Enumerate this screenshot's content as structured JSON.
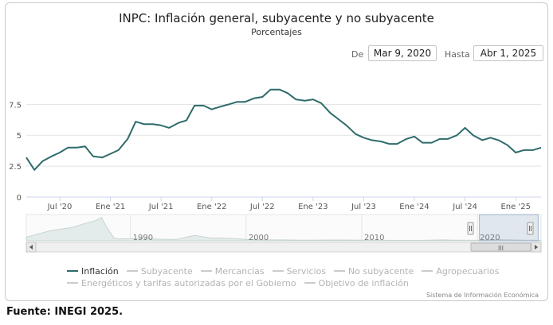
{
  "chart_data": {
    "type": "line",
    "title": "INPC: Inflación general, subyacente y no subyacente",
    "subtitle": "Porcentajes",
    "range_selector": {
      "from_label": "De",
      "from_value": "Mar 9, 2020",
      "to_label": "Hasta",
      "to_value": "Abr 1, 2025"
    },
    "yticks": [
      "0",
      "2.5",
      "5",
      "7.5"
    ],
    "ylim": [
      0,
      10.8
    ],
    "xticks": [
      {
        "label": "Jul '20",
        "t": 2020.5
      },
      {
        "label": "Ene '21",
        "t": 2021.0
      },
      {
        "label": "Jul '21",
        "t": 2021.5
      },
      {
        "label": "Ene '22",
        "t": 2022.0
      },
      {
        "label": "Jul '22",
        "t": 2022.5
      },
      {
        "label": "Ene '23",
        "t": 2023.0
      },
      {
        "label": "Jul '23",
        "t": 2023.5
      },
      {
        "label": "Ene '24",
        "t": 2024.0
      },
      {
        "label": "Jul '24",
        "t": 2024.5
      },
      {
        "label": "Ene '25",
        "t": 2025.0
      }
    ],
    "xlim": [
      2020.17,
      2025.25
    ],
    "series": [
      {
        "name": "Inflación",
        "color": "#2f6b6b",
        "points": [
          [
            2020.17,
            3.2
          ],
          [
            2020.25,
            2.2
          ],
          [
            2020.33,
            2.9
          ],
          [
            2020.42,
            3.3
          ],
          [
            2020.5,
            3.6
          ],
          [
            2020.58,
            4.0
          ],
          [
            2020.67,
            4.0
          ],
          [
            2020.75,
            4.1
          ],
          [
            2020.83,
            3.3
          ],
          [
            2020.92,
            3.2
          ],
          [
            2021.0,
            3.5
          ],
          [
            2021.08,
            3.8
          ],
          [
            2021.17,
            4.7
          ],
          [
            2021.25,
            6.1
          ],
          [
            2021.33,
            5.9
          ],
          [
            2021.42,
            5.9
          ],
          [
            2021.5,
            5.8
          ],
          [
            2021.58,
            5.6
          ],
          [
            2021.67,
            6.0
          ],
          [
            2021.75,
            6.2
          ],
          [
            2021.83,
            7.4
          ],
          [
            2021.92,
            7.4
          ],
          [
            2022.0,
            7.1
          ],
          [
            2022.08,
            7.3
          ],
          [
            2022.17,
            7.5
          ],
          [
            2022.25,
            7.7
          ],
          [
            2022.33,
            7.7
          ],
          [
            2022.42,
            8.0
          ],
          [
            2022.5,
            8.1
          ],
          [
            2022.58,
            8.7
          ],
          [
            2022.67,
            8.7
          ],
          [
            2022.75,
            8.4
          ],
          [
            2022.83,
            7.9
          ],
          [
            2022.92,
            7.8
          ],
          [
            2023.0,
            7.9
          ],
          [
            2023.08,
            7.6
          ],
          [
            2023.17,
            6.8
          ],
          [
            2023.25,
            6.3
          ],
          [
            2023.33,
            5.8
          ],
          [
            2023.42,
            5.1
          ],
          [
            2023.5,
            4.8
          ],
          [
            2023.58,
            4.6
          ],
          [
            2023.67,
            4.5
          ],
          [
            2023.75,
            4.3
          ],
          [
            2023.83,
            4.3
          ],
          [
            2023.92,
            4.7
          ],
          [
            2024.0,
            4.9
          ],
          [
            2024.08,
            4.4
          ],
          [
            2024.17,
            4.4
          ],
          [
            2024.25,
            4.7
          ],
          [
            2024.33,
            4.7
          ],
          [
            2024.42,
            5.0
          ],
          [
            2024.5,
            5.6
          ],
          [
            2024.58,
            5.0
          ],
          [
            2024.67,
            4.6
          ],
          [
            2024.75,
            4.8
          ],
          [
            2024.83,
            4.6
          ],
          [
            2024.92,
            4.2
          ],
          [
            2025.0,
            3.6
          ],
          [
            2025.08,
            3.8
          ],
          [
            2025.17,
            3.8
          ],
          [
            2025.25,
            4.0
          ]
        ]
      }
    ],
    "navigator": {
      "decade_labels": [
        "1990",
        "2000",
        "2010",
        "2020"
      ],
      "years_range": [
        1981,
        2025.5
      ],
      "profile": [
        [
          1981,
          8
        ],
        [
          1982,
          15
        ],
        [
          1983,
          22
        ],
        [
          1984,
          26
        ],
        [
          1985,
          30
        ],
        [
          1986,
          38
        ],
        [
          1987,
          45
        ],
        [
          1987.5,
          52
        ],
        [
          1988,
          28
        ],
        [
          1988.6,
          6
        ],
        [
          1989,
          4
        ],
        [
          1990,
          5
        ],
        [
          1991,
          5
        ],
        [
          1992,
          4
        ],
        [
          1993,
          3
        ],
        [
          1994,
          3
        ],
        [
          1995,
          9
        ],
        [
          1995.6,
          12
        ],
        [
          1996,
          10
        ],
        [
          1997,
          6
        ],
        [
          1998,
          6
        ],
        [
          1999,
          5
        ],
        [
          2000,
          3
        ],
        [
          2001,
          2
        ],
        [
          2003,
          2
        ],
        [
          2005,
          1.5
        ],
        [
          2008,
          1.8
        ],
        [
          2009,
          1.6
        ],
        [
          2012,
          1
        ],
        [
          2015,
          0.8
        ],
        [
          2017,
          2
        ],
        [
          2018,
          1.5
        ],
        [
          2020,
          1
        ],
        [
          2022,
          2.5
        ],
        [
          2024,
          1.2
        ],
        [
          2025.5,
          1
        ]
      ],
      "scrollbar_glyph": "III"
    },
    "legend": [
      {
        "name": "Inflación",
        "active": true
      },
      {
        "name": "Subyacente",
        "active": false
      },
      {
        "name": "Mercancías",
        "active": false
      },
      {
        "name": "Servicios",
        "active": false
      },
      {
        "name": "No subyacente",
        "active": false
      },
      {
        "name": "Agropecuarios",
        "active": false
      },
      {
        "name": "Energéticos y tarifas autorizadas por el Gobierno",
        "active": false
      },
      {
        "name": "Objetivo de inflación",
        "active": false
      }
    ],
    "credit": "Sistema de Información Económica"
  },
  "source_note": "Fuente: INEGI 2025."
}
